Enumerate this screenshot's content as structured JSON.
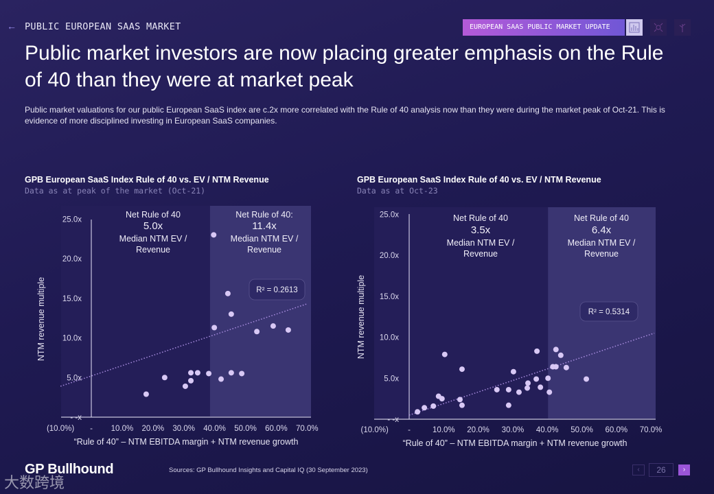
{
  "header": {
    "back_icon": "arrow-left-icon",
    "section": "PUBLIC EUROPEAN SAAS MARKET",
    "pill": "EUROPEAN SAAS PUBLIC MARKET UPDATE",
    "icons": [
      "bar-chart-icon",
      "network-icon",
      "tree-icon"
    ]
  },
  "title": "Public market investors are now placing greater emphasis on the Rule of 40 than they were at market peak",
  "description": "Public market valuations for our public European SaaS index are c.2x more correlated with the Rule of 40 analysis now than they were during the market peak of Oct-21. This is evidence of more disciplined investing in European SaaS companies.",
  "chart_data": [
    {
      "type": "scatter",
      "title": "GPB European SaaS Index Rule of 40 vs. EV / NTM Revenue",
      "subtitle": "Data as at peak of the market (Oct-21)",
      "xlabel": "“Rule of 40” – NTM EBITDA margin + NTM revenue growth",
      "ylabel": "NTM revenue multiple",
      "xlim": [
        -10,
        70
      ],
      "ylim": [
        0,
        25
      ],
      "x_ticks": [
        {
          "v": -10,
          "label": "(10.0%)"
        },
        {
          "v": 0,
          "label": "-"
        },
        {
          "v": 10,
          "label": "10.0%"
        },
        {
          "v": 20,
          "label": "20.0%"
        },
        {
          "v": 30,
          "label": "30.0%"
        },
        {
          "v": 40,
          "label": "40.0%"
        },
        {
          "v": 50,
          "label": "50.0%"
        },
        {
          "v": 60,
          "label": "60.0%"
        },
        {
          "v": 70,
          "label": "70.0%"
        }
      ],
      "y_ticks": [
        {
          "v": 0,
          "label": "- -x"
        },
        {
          "v": 5,
          "label": "5.0x"
        },
        {
          "v": 10,
          "label": "10.0x"
        },
        {
          "v": 15,
          "label": "15.0x"
        },
        {
          "v": 20,
          "label": "20.0x"
        },
        {
          "v": 25,
          "label": "25.0x"
        }
      ],
      "highlight_from_x": 38.5,
      "regions": [
        {
          "lines": [
            "Net Rule of 40",
            "5.0x",
            "Median NTM EV /",
            "Revenue"
          ]
        },
        {
          "lines": [
            "Net Rule of 40:",
            "11.4x",
            "Median NTM EV /",
            "Revenue"
          ]
        }
      ],
      "r2": "R² = 0.2613",
      "trend": [
        [
          -10,
          3.9
        ],
        [
          70,
          14.3
        ]
      ],
      "points": [
        [
          39.7,
          23.0
        ],
        [
          44.3,
          15.6
        ],
        [
          45.4,
          13.0
        ],
        [
          39.9,
          11.3
        ],
        [
          53.7,
          10.8
        ],
        [
          59.0,
          11.5
        ],
        [
          63.9,
          11.0
        ],
        [
          17.8,
          2.9
        ],
        [
          23.8,
          5.0
        ],
        [
          30.5,
          3.9
        ],
        [
          32.3,
          4.6
        ],
        [
          32.3,
          5.6
        ],
        [
          34.5,
          5.6
        ],
        [
          38.1,
          5.5
        ],
        [
          42.1,
          4.8
        ],
        [
          45.4,
          5.6
        ],
        [
          48.8,
          5.5
        ]
      ]
    },
    {
      "type": "scatter",
      "title": "GPB European SaaS Index Rule of 40 vs. EV / NTM Revenue",
      "subtitle": "Data as at Oct-23",
      "xlabel": "“Rule of 40” – NTM EBITDA margin + NTM revenue growth",
      "ylabel": "NTM revenue multiple",
      "xlim": [
        -10,
        70
      ],
      "ylim": [
        0,
        25
      ],
      "x_ticks": [
        {
          "v": -10,
          "label": "(10.0%)"
        },
        {
          "v": 0,
          "label": "-"
        },
        {
          "v": 10,
          "label": "10.0%"
        },
        {
          "v": 20,
          "label": "20.0%"
        },
        {
          "v": 30,
          "label": "30.0%"
        },
        {
          "v": 40,
          "label": "40.0%"
        },
        {
          "v": 50,
          "label": "50.0%"
        },
        {
          "v": 60,
          "label": "60.0%"
        },
        {
          "v": 70,
          "label": "70.0%"
        }
      ],
      "y_ticks": [
        {
          "v": 0,
          "label": "- -x"
        },
        {
          "v": 5,
          "label": "5.0x"
        },
        {
          "v": 10,
          "label": "10.0x"
        },
        {
          "v": 15,
          "label": "15.0x"
        },
        {
          "v": 20,
          "label": "20.0x"
        },
        {
          "v": 25,
          "label": "25.0x"
        }
      ],
      "highlight_from_x": 40.2,
      "regions": [
        {
          "lines": [
            "Net Rule of 40",
            "3.5x",
            "Median NTM EV /",
            "Revenue"
          ]
        },
        {
          "lines": [
            "Net Rule of 40",
            "6.4x",
            "Median NTM EV /",
            "Revenue"
          ]
        }
      ],
      "r2": "R² = 0.5314",
      "trend": [
        [
          0,
          0.5
        ],
        [
          71,
          10.5
        ]
      ],
      "points": [
        [
          2.4,
          0.9
        ],
        [
          4.4,
          1.4
        ],
        [
          7.0,
          1.6
        ],
        [
          8.5,
          2.8
        ],
        [
          9.5,
          2.5
        ],
        [
          10.3,
          7.9
        ],
        [
          14.7,
          2.4
        ],
        [
          15.3,
          1.7
        ],
        [
          15.3,
          6.1
        ],
        [
          25.4,
          3.6
        ],
        [
          28.8,
          3.6
        ],
        [
          28.8,
          1.7
        ],
        [
          30.2,
          5.8
        ],
        [
          31.8,
          3.3
        ],
        [
          34.2,
          3.8
        ],
        [
          34.4,
          4.4
        ],
        [
          36.8,
          4.9
        ],
        [
          37.0,
          8.3
        ],
        [
          38.0,
          3.9
        ],
        [
          40.2,
          5.0
        ],
        [
          40.6,
          3.3
        ],
        [
          41.6,
          6.4
        ],
        [
          42.5,
          6.4
        ],
        [
          42.5,
          8.5
        ],
        [
          43.9,
          7.8
        ],
        [
          45.5,
          6.3
        ],
        [
          51.3,
          4.9
        ]
      ]
    }
  ],
  "footer": {
    "logo": "GP Bullhound",
    "watermark": "大数跨境",
    "sources": "Sources: GP Bullhound Insights and Capital IQ (30 September 2023)",
    "page": "26",
    "prev": "‹",
    "next": "›"
  },
  "colors": {
    "accent": "#9a55d8",
    "point": "#d8c8f5",
    "trend": "#a98de0"
  }
}
